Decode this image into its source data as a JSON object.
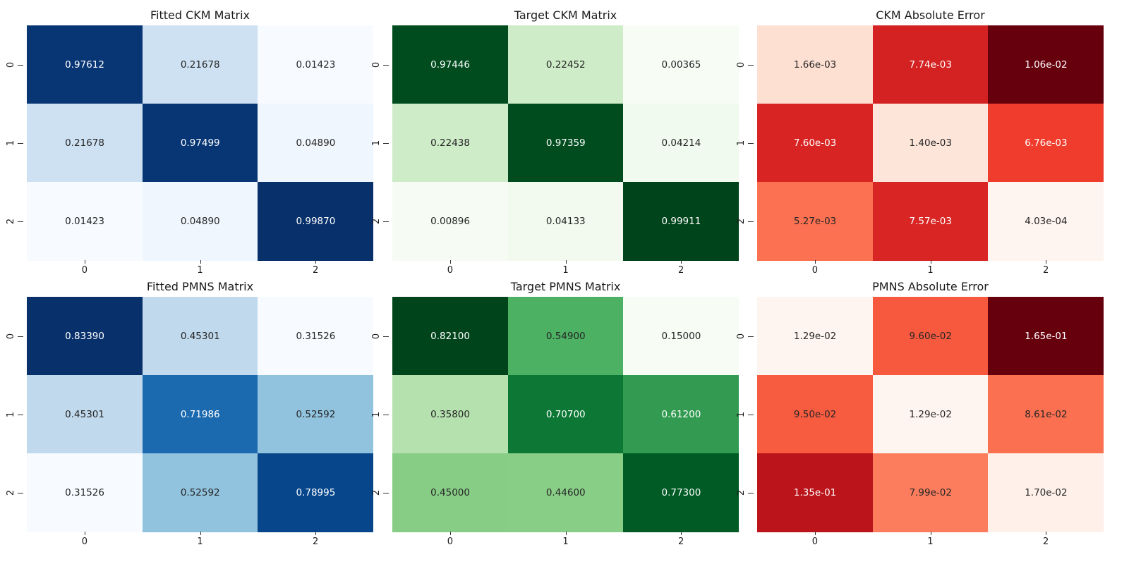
{
  "chart_data": [
    {
      "type": "heatmap",
      "title": "Fitted CKM Matrix",
      "colormap": "Blues",
      "vmin": 0.01423,
      "vmax": 0.9987,
      "xticks": [
        "0",
        "1",
        "2"
      ],
      "yticks": [
        "0",
        "1",
        "2"
      ],
      "values": [
        [
          0.97612,
          0.21678,
          0.01423
        ],
        [
          0.21678,
          0.97499,
          0.0489
        ],
        [
          0.01423,
          0.0489,
          0.9987
        ]
      ],
      "labels": [
        [
          "0.97612",
          "0.21678",
          "0.01423"
        ],
        [
          "0.21678",
          "0.97499",
          "0.04890"
        ],
        [
          "0.01423",
          "0.04890",
          "0.99870"
        ]
      ]
    },
    {
      "type": "heatmap",
      "title": "Target CKM Matrix",
      "colormap": "Greens",
      "vmin": 0.00365,
      "vmax": 0.99911,
      "xticks": [
        "0",
        "1",
        "2"
      ],
      "yticks": [
        "0",
        "1",
        "2"
      ],
      "values": [
        [
          0.97446,
          0.22452,
          0.00365
        ],
        [
          0.22438,
          0.97359,
          0.04214
        ],
        [
          0.00896,
          0.04133,
          0.99911
        ]
      ],
      "labels": [
        [
          "0.97446",
          "0.22452",
          "0.00365"
        ],
        [
          "0.22438",
          "0.97359",
          "0.04214"
        ],
        [
          "0.00896",
          "0.04133",
          "0.99911"
        ]
      ]
    },
    {
      "type": "heatmap",
      "title": "CKM Absolute Error",
      "colormap": "Reds",
      "vmin": 0.000403,
      "vmax": 0.0106,
      "xticks": [
        "0",
        "1",
        "2"
      ],
      "yticks": [
        "0",
        "1",
        "2"
      ],
      "values": [
        [
          0.00166,
          0.00774,
          0.0106
        ],
        [
          0.0076,
          0.0014,
          0.00676
        ],
        [
          0.00527,
          0.00757,
          0.000403
        ]
      ],
      "labels": [
        [
          "1.66e-03",
          "7.74e-03",
          "1.06e-02"
        ],
        [
          "7.60e-03",
          "1.40e-03",
          "6.76e-03"
        ],
        [
          "5.27e-03",
          "7.57e-03",
          "4.03e-04"
        ]
      ]
    },
    {
      "type": "heatmap",
      "title": "Fitted PMNS Matrix",
      "colormap": "Blues",
      "vmin": 0.31526,
      "vmax": 0.8339,
      "xticks": [
        "0",
        "1",
        "2"
      ],
      "yticks": [
        "0",
        "1",
        "2"
      ],
      "values": [
        [
          0.8339,
          0.45301,
          0.31526
        ],
        [
          0.45301,
          0.71986,
          0.52592
        ],
        [
          0.31526,
          0.52592,
          0.78995
        ]
      ],
      "labels": [
        [
          "0.83390",
          "0.45301",
          "0.31526"
        ],
        [
          "0.45301",
          "0.71986",
          "0.52592"
        ],
        [
          "0.31526",
          "0.52592",
          "0.78995"
        ]
      ]
    },
    {
      "type": "heatmap",
      "title": "Target PMNS Matrix",
      "colormap": "Greens",
      "vmin": 0.15,
      "vmax": 0.821,
      "xticks": [
        "0",
        "1",
        "2"
      ],
      "yticks": [
        "0",
        "1",
        "2"
      ],
      "values": [
        [
          0.821,
          0.549,
          0.15
        ],
        [
          0.358,
          0.707,
          0.612
        ],
        [
          0.45,
          0.446,
          0.773
        ]
      ],
      "labels": [
        [
          "0.82100",
          "0.54900",
          "0.15000"
        ],
        [
          "0.35800",
          "0.70700",
          "0.61200"
        ],
        [
          "0.45000",
          "0.44600",
          "0.77300"
        ]
      ]
    },
    {
      "type": "heatmap",
      "title": "PMNS Absolute Error",
      "colormap": "Reds",
      "vmin": 0.0129,
      "vmax": 0.165,
      "xticks": [
        "0",
        "1",
        "2"
      ],
      "yticks": [
        "0",
        "1",
        "2"
      ],
      "values": [
        [
          0.0129,
          0.096,
          0.165
        ],
        [
          0.095,
          0.0129,
          0.0861
        ],
        [
          0.135,
          0.0799,
          0.017
        ]
      ],
      "labels": [
        [
          "1.29e-02",
          "9.60e-02",
          "1.65e-01"
        ],
        [
          "9.50e-02",
          "1.29e-02",
          "8.61e-02"
        ],
        [
          "1.35e-01",
          "7.99e-02",
          "1.70e-02"
        ]
      ]
    }
  ]
}
